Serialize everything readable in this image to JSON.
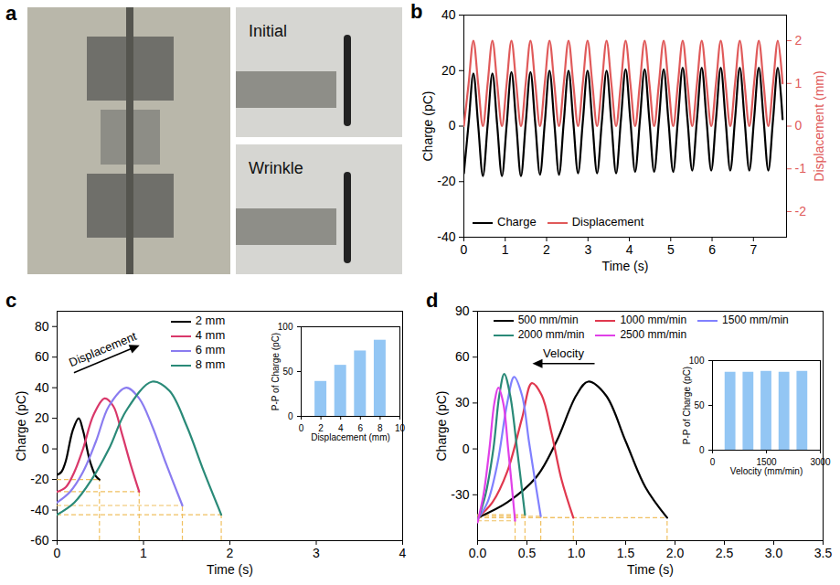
{
  "chart_data": [
    {
      "panel": "b",
      "type": "line",
      "xlabel": "Time (s)",
      "ylabel": "Charge (pC)",
      "y2label": "Displacement (mm)",
      "x": [
        0,
        0.115,
        0.23,
        0.345,
        0.46,
        0.575,
        0.69,
        0.805,
        0.92,
        1.035,
        1.15,
        1.265,
        1.38,
        1.495,
        1.61,
        1.725,
        1.84,
        1.955,
        2.07,
        2.185,
        2.3,
        2.415,
        2.53,
        2.645,
        2.76,
        2.875,
        2.99,
        3.105,
        3.22,
        3.335,
        3.45,
        3.565,
        3.68,
        3.795,
        3.91,
        4.025,
        4.14,
        4.255,
        4.37,
        4.485,
        4.6,
        4.715,
        4.83,
        4.945,
        5.06,
        5.175,
        5.29,
        5.405,
        5.52,
        5.635,
        5.75,
        5.865,
        5.98,
        6.095,
        6.21,
        6.325,
        6.44,
        6.555,
        6.67,
        6.785,
        6.9,
        7.015,
        7.13,
        7.245,
        7.36,
        7.475,
        7.59,
        7.705
      ],
      "xlim": [
        0,
        7.8
      ],
      "xticks": [
        0,
        1,
        2,
        3,
        4,
        5,
        6,
        7
      ],
      "ylim": [
        -40,
        40
      ],
      "yticks": [
        -40,
        -20,
        0,
        20,
        40
      ],
      "y2lim": [
        -2.6,
        2.6
      ],
      "y2ticks": [
        -2,
        -1,
        0,
        1,
        2
      ],
      "legend": "bottom-left",
      "series": [
        {
          "name": "Charge",
          "color": "#000000",
          "values": [
            -17,
            1,
            19,
            0.5,
            -18,
            0.5,
            19,
            0.5,
            -18,
            0.5,
            19.5,
            1,
            -18,
            1,
            19.5,
            1,
            -17.5,
            1,
            20,
            1.5,
            -17.5,
            1.5,
            20,
            1.5,
            -17,
            1.5,
            20,
            1.5,
            -17,
            1.5,
            20,
            1.5,
            -17,
            2,
            20.5,
            2,
            -16.5,
            2,
            20.5,
            2,
            -16.5,
            2,
            20.5,
            2,
            -16.5,
            2.5,
            21,
            2.5,
            -16,
            2.5,
            21,
            2.5,
            -16,
            2.5,
            21,
            2.5,
            -16,
            2.5,
            21,
            2.5,
            -16,
            2.5,
            21,
            2.5,
            -16,
            2.5,
            21,
            2.5
          ]
        },
        {
          "name": "Displacement",
          "color": "#e05a5a",
          "axis": "y2",
          "values": [
            0,
            1,
            2,
            1,
            0,
            1,
            2,
            1,
            0,
            1,
            2,
            1,
            0,
            1,
            2,
            1,
            0,
            1,
            2,
            1,
            0,
            1,
            2,
            1,
            0,
            1,
            2,
            1,
            0,
            1,
            2,
            1,
            0,
            1,
            2,
            1,
            0,
            1,
            2,
            1,
            0,
            1,
            2,
            1,
            0,
            1,
            2,
            1,
            0,
            1,
            2,
            1,
            0,
            1,
            2,
            1,
            0,
            1,
            2,
            1,
            0,
            1,
            2,
            1,
            0,
            1,
            2,
            1
          ]
        }
      ]
    },
    {
      "panel": "c",
      "type": "line",
      "xlabel": "Time (s)",
      "ylabel": "Charge (pC)",
      "xlim": [
        0,
        4
      ],
      "xticks": [
        0,
        1,
        2,
        3,
        4
      ],
      "ylim": [
        -60,
        90
      ],
      "yticks": [
        -60,
        -40,
        -20,
        0,
        20,
        40,
        60,
        80
      ],
      "legend": "top",
      "annotations": [
        {
          "text": "Displacement"
        }
      ],
      "series": [
        {
          "name": "2 mm",
          "color": "#000000",
          "x": [
            0,
            0.05,
            0.1,
            0.18,
            0.25,
            0.3,
            0.38,
            0.45,
            0.49
          ],
          "values": [
            -17,
            -15,
            -8,
            12,
            20,
            12,
            -8,
            -18,
            -20
          ]
        },
        {
          "name": "4 mm",
          "color": "#d9386a",
          "x": [
            0,
            0.1,
            0.2,
            0.3,
            0.42,
            0.55,
            0.65,
            0.75,
            0.85,
            0.95
          ],
          "values": [
            -28,
            -25,
            -15,
            0,
            22,
            33,
            28,
            10,
            -10,
            -28
          ]
        },
        {
          "name": "6 mm",
          "color": "#8a7cf0",
          "x": [
            0,
            0.15,
            0.3,
            0.45,
            0.6,
            0.8,
            0.95,
            1.1,
            1.25,
            1.45
          ],
          "values": [
            -35,
            -28,
            -15,
            5,
            28,
            40,
            33,
            15,
            -8,
            -37
          ]
        },
        {
          "name": "8 mm",
          "color": "#2a8a78",
          "x": [
            0,
            0.2,
            0.4,
            0.6,
            0.8,
            1.1,
            1.3,
            1.5,
            1.7,
            1.9
          ],
          "values": [
            -43,
            -35,
            -20,
            0,
            25,
            44,
            38,
            15,
            -15,
            -43
          ]
        }
      ],
      "inset": {
        "type": "bar",
        "xlabel": "Displacement (mm)",
        "ylabel": "P-P of Charge (pC)",
        "x": [
          2,
          4,
          6,
          8
        ],
        "values": [
          39,
          57,
          73,
          85
        ],
        "color": "#93c6f4",
        "xlim": [
          0,
          10
        ],
        "xticks": [
          0,
          2,
          4,
          6,
          8,
          10
        ],
        "ylim": [
          0,
          100
        ],
        "yticks": [
          0,
          50,
          100
        ]
      }
    },
    {
      "panel": "d",
      "type": "line",
      "xlabel": "Time (s)",
      "ylabel": "Charge (pC)",
      "xlim": [
        0,
        3.5
      ],
      "xticks": [
        {
          "value": 0,
          "label": "0.0"
        },
        {
          "value": 0.5,
          "label": "0.5"
        },
        {
          "value": 1,
          "label": "1.0"
        },
        {
          "value": 1.5,
          "label": "1.5"
        },
        {
          "value": 2,
          "label": "2.0"
        },
        {
          "value": 2.5,
          "label": "2.5"
        },
        {
          "value": 3,
          "label": "3.0"
        },
        {
          "value": 3.5,
          "label": "3.5"
        }
      ],
      "ylim": [
        -60,
        90
      ],
      "yticks": [
        -30,
        0,
        30,
        60,
        90
      ],
      "legend": "top",
      "annotations": [
        {
          "text": "Velocity"
        }
      ],
      "series": [
        {
          "name": "500 mm/min",
          "color": "#000000",
          "x": [
            0,
            0.3,
            0.6,
            0.8,
            1.0,
            1.12,
            1.3,
            1.5,
            1.7,
            1.92
          ],
          "values": [
            -45,
            -35,
            -18,
            5,
            35,
            44,
            35,
            5,
            -25,
            -45
          ]
        },
        {
          "name": "1000 mm/min",
          "color": "#e0384e",
          "x": [
            0,
            0.15,
            0.3,
            0.45,
            0.55,
            0.65,
            0.75,
            0.85,
            0.97
          ],
          "values": [
            -45,
            -35,
            -15,
            20,
            43,
            35,
            10,
            -20,
            -45
          ]
        },
        {
          "name": "1500 mm/min",
          "color": "#8080ff",
          "x": [
            0,
            0.1,
            0.2,
            0.3,
            0.37,
            0.45,
            0.52,
            0.58,
            0.64
          ],
          "values": [
            -46,
            -35,
            -10,
            30,
            47,
            35,
            5,
            -20,
            -44
          ]
        },
        {
          "name": "2000 mm/min",
          "color": "#2a8a78",
          "x": [
            0,
            0.08,
            0.16,
            0.22,
            0.27,
            0.33,
            0.4,
            0.48
          ],
          "values": [
            -47,
            -30,
            0,
            35,
            49,
            35,
            0,
            -43
          ]
        },
        {
          "name": "2500 mm/min",
          "color": "#e040e8",
          "x": [
            0,
            0.06,
            0.12,
            0.17,
            0.21,
            0.26,
            0.31,
            0.38
          ],
          "values": [
            -48,
            -30,
            0,
            30,
            40,
            30,
            0,
            -47
          ]
        }
      ],
      "inset": {
        "type": "bar",
        "xlabel": "Velocity (mm/min)",
        "ylabel": "P-P of Charge (pC)",
        "x": [
          500,
          1000,
          1500,
          2000,
          2500
        ],
        "values": [
          87,
          87,
          88,
          87,
          88
        ],
        "color": "#93c6f4",
        "xlim": [
          0,
          3000
        ],
        "xticks": [
          0,
          1500,
          3000
        ],
        "ylim": [
          0,
          100
        ],
        "yticks": [
          0,
          50,
          100
        ]
      }
    }
  ],
  "photo_panel": {
    "panel": "a",
    "labels": [
      "Initial",
      "Wrinkle"
    ]
  }
}
